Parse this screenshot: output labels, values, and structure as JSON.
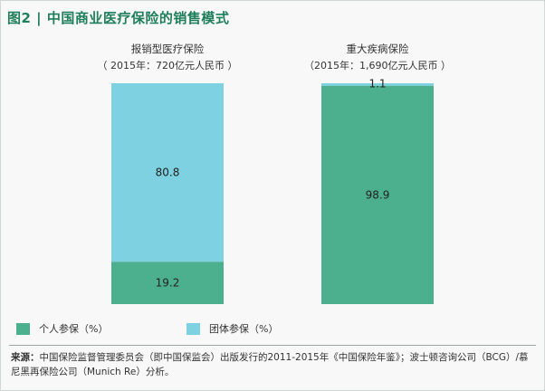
{
  "title": "图2 | 中国商业医疗保险的销售模式",
  "colors": {
    "individual": "#4caf8e",
    "group": "#7ed1e0",
    "title": "#1f7e5c"
  },
  "legend": {
    "individual": "个人参保（%）",
    "group": "团体参保（%）"
  },
  "source": {
    "label": "来源：",
    "text": "中国保险监督管理委员会（即中国保监会）出版发行的2011-2015年《中国保险年鉴》；波士顿咨询公司（BCG）/慕尼黑再保险公司（Munich Re）分析。"
  },
  "chart_data": {
    "type": "bar",
    "stacked": true,
    "normalized": true,
    "categories": [
      {
        "name": "报销型医疗保险",
        "subtitle": "（ 2015年：720亿元人民币 ）"
      },
      {
        "name": "重大疾病保险",
        "subtitle": "（2015年：1,690亿元人民币 ）"
      }
    ],
    "series": [
      {
        "name": "个人参保（%）",
        "color": "#4caf8e",
        "values": [
          19.2,
          98.9
        ]
      },
      {
        "name": "团体参保（%）",
        "color": "#7ed1e0",
        "values": [
          80.8,
          1.1
        ]
      }
    ],
    "ylim": [
      0,
      100
    ],
    "grid": false,
    "legend_position": "bottom-left",
    "value_labels": [
      "19.2",
      "98.9",
      "80.8",
      "1.1"
    ]
  }
}
